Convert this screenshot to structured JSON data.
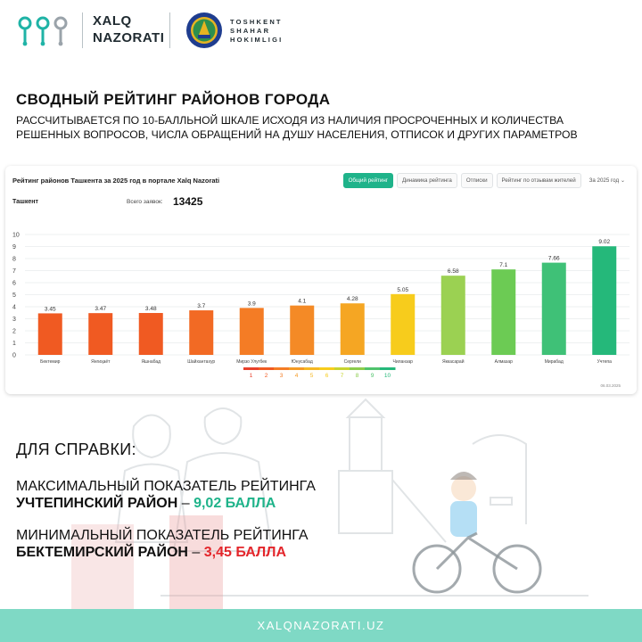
{
  "header": {
    "brand_line1": "XALQ",
    "brand_line2": "NAZORATI",
    "hokimligi_line1": "TOSHKENT",
    "hokimligi_line2": "SHAHAR",
    "hokimligi_line3": "HOKIMLIGI",
    "colors": {
      "logo_teal": "#1fb3a6",
      "logo_grey": "#9aa3aa",
      "seal_blue": "#1f3d8f",
      "seal_gold": "#e6b422"
    }
  },
  "heading": {
    "title": "СВОДНЫЙ РЕЙТИНГ РАЙОНОВ ГОРОДА",
    "subtitle_line1": "РАССЧИТЫВАЕТСЯ ПО 10-БАЛЛЬНОЙ ШКАЛЕ ИСХОДЯ ИЗ НАЛИЧИЯ ПРОСРОЧЕННЫХ И  КОЛИЧЕСТВА",
    "subtitle_line2": "РЕШЕННЫХ ВОПРОСОВ, ЧИСЛА ОБРАЩЕНИЙ НА ДУШУ НАСЕЛЕНИЯ, ОТПИСОК И ДРУГИХ ПАРАМЕТРОВ"
  },
  "chart_panel": {
    "title": "Рейтинг районов Ташкента за 2025 год в портале Xalq Nazorati",
    "tabs": [
      "Общий рейтинг",
      "Динамика рейтинга",
      "Отписки",
      "Рейтинг по отзывам жителей"
    ],
    "active_tab": "Общий рейтинг",
    "year_select": "За 2025 год",
    "city": "Ташкент",
    "total_label": "Всего заявок:",
    "total_value": "13425",
    "date_note": "06.03.2025"
  },
  "chart_data": {
    "type": "bar",
    "title": "Рейтинг районов Ташкента за 2025 год в портале Xalq Nazorati",
    "xlabel": "",
    "ylabel": "",
    "categories": [
      "Бектемир",
      "Янгиҳаёт",
      "Яшнабад",
      "Шайхантахур",
      "Мирзо Улугбек",
      "Юнусабад",
      "Сергели",
      "Чиланзар",
      "Яккасарай",
      "Алмазар",
      "Мирабад",
      "Учтепа"
    ],
    "values": [
      3.45,
      3.47,
      3.48,
      3.7,
      3.9,
      4.1,
      4.28,
      5.05,
      6.58,
      7.1,
      7.66,
      9.02
    ],
    "value_labels": [
      "3.45",
      "3.47",
      "3.48",
      "3.7",
      "3.9",
      "4.1",
      "4.28",
      "5.05",
      "6.58",
      "7.1",
      "7.66",
      "9.02"
    ],
    "bar_colors": [
      "#f05a22",
      "#f05a22",
      "#f05a22",
      "#f26a24",
      "#f47c25",
      "#f48a26",
      "#f5a623",
      "#f7cc1c",
      "#9bd152",
      "#6ccb54",
      "#3fc177",
      "#25b87a"
    ],
    "ylim": [
      0,
      10
    ],
    "yticks": [
      0,
      1,
      2,
      3,
      4,
      5,
      6,
      7,
      8,
      9,
      10
    ],
    "grid": true,
    "legend_scale": {
      "labels": [
        "1",
        "2",
        "3",
        "4",
        "5",
        "6",
        "7",
        "8",
        "9",
        "10"
      ],
      "colors": [
        "#e8402b",
        "#f05a22",
        "#f47c25",
        "#f59a24",
        "#f5b723",
        "#f7cc1c",
        "#c8d430",
        "#8ccc4c",
        "#4fc36c",
        "#25b87a"
      ]
    }
  },
  "reference": {
    "title": "ДЛЯ СПРАВКИ:",
    "max_line1": "МАКСИМАЛЬНЫЙ ПОКАЗАТЕЛЬ РЕЙТИНГА",
    "max_district": "УЧТЕПИНСКИЙ  РАЙОН",
    "max_dash": " – ",
    "max_value": "9,02 БАЛЛА",
    "min_line1": "МИНИМАЛЬНЫЙ ПОКАЗАТЕЛЬ РЕЙТИНГА",
    "min_district": "БЕКТЕМИРСКИЙ РАЙОН",
    "min_dash": " – ",
    "min_value": "3,45 БАЛЛА",
    "colors": {
      "max": "#1fb38a",
      "min": "#e3262b"
    }
  },
  "footer": {
    "url": "XALQNAZORATI.UZ",
    "color": "#7fd9c5"
  }
}
